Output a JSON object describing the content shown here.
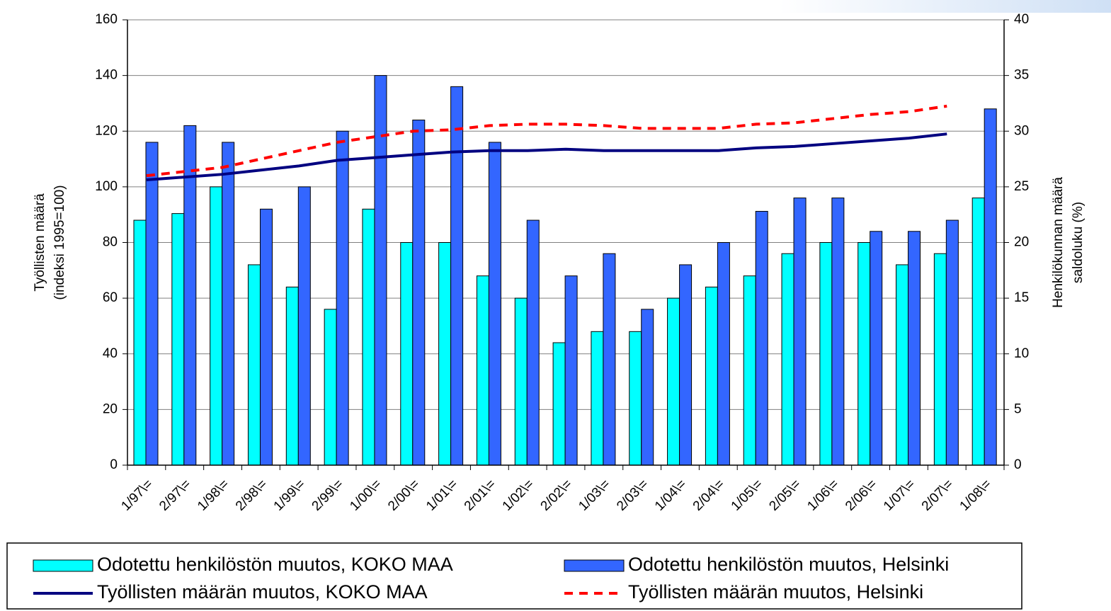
{
  "chart_data": {
    "type": "bar",
    "categories": [
      "1/97\\=",
      "2/97\\=",
      "1/98\\=",
      "2/98\\=",
      "1/99\\=",
      "2/99\\=",
      "1/00\\=",
      "2/00\\=",
      "1/01\\=",
      "2/01\\=",
      "1/02\\=",
      "2/02\\=",
      "1/03\\=",
      "2/03\\=",
      "1/04\\=",
      "2/04\\=",
      "1/05\\=",
      "2/05\\=",
      "1/06\\=",
      "2/06\\=",
      "1/07\\=",
      "2/07\\=",
      "1/08\\="
    ],
    "series": [
      {
        "name": "Odotettu henkilöstön muutos, KOKO MAA",
        "type": "bar",
        "axis": "y2",
        "color": "#00ffff",
        "values": [
          22,
          22.6,
          25,
          18,
          16,
          14,
          23,
          20,
          20,
          17,
          15,
          11,
          12,
          12,
          15,
          16,
          17,
          19,
          20,
          20,
          18,
          19,
          24
        ]
      },
      {
        "name": "Odotettu henkilöstön muutos, Helsinki",
        "type": "bar",
        "axis": "y2",
        "color": "#3366ff",
        "values": [
          29,
          30.5,
          29,
          23,
          25,
          30,
          35,
          31,
          34,
          29,
          22,
          17,
          19,
          14,
          18,
          20,
          22.8,
          24,
          24,
          21,
          21,
          22,
          32
        ]
      },
      {
        "name": "Työllisten määrän muutos, KOKO MAA",
        "type": "line",
        "axis": "y",
        "color": "#000080",
        "dashed": false,
        "values": [
          102.5,
          103.5,
          104.5,
          106,
          107.5,
          109.5,
          110.5,
          111.5,
          112.5,
          113,
          113,
          113.5,
          113,
          113,
          113,
          113,
          114,
          114.5,
          115.5,
          116.5,
          117.5,
          119,
          null
        ]
      },
      {
        "name": "Työllisten määrän muutos, Helsinki",
        "type": "line",
        "axis": "y",
        "color": "#ff0000",
        "dashed": true,
        "values": [
          104,
          105.5,
          107,
          110,
          113,
          116,
          118,
          120,
          120.5,
          122,
          122.5,
          122.5,
          122,
          121,
          121,
          121,
          122.5,
          123,
          124.5,
          126,
          127,
          129,
          null
        ]
      }
    ],
    "ylabel": [
      "Työllisten määrä",
      "(indeksi 1995=100)"
    ],
    "y2label": [
      "Henkilökunnan määrä",
      "saldoluku (%)"
    ],
    "ylim": [
      0,
      160
    ],
    "yticks": [
      0,
      20,
      40,
      60,
      80,
      100,
      120,
      140,
      160
    ],
    "y2lim": [
      0,
      40
    ],
    "y2ticks": [
      0,
      5,
      10,
      15,
      20,
      25,
      30,
      35,
      40
    ],
    "grid": true
  }
}
